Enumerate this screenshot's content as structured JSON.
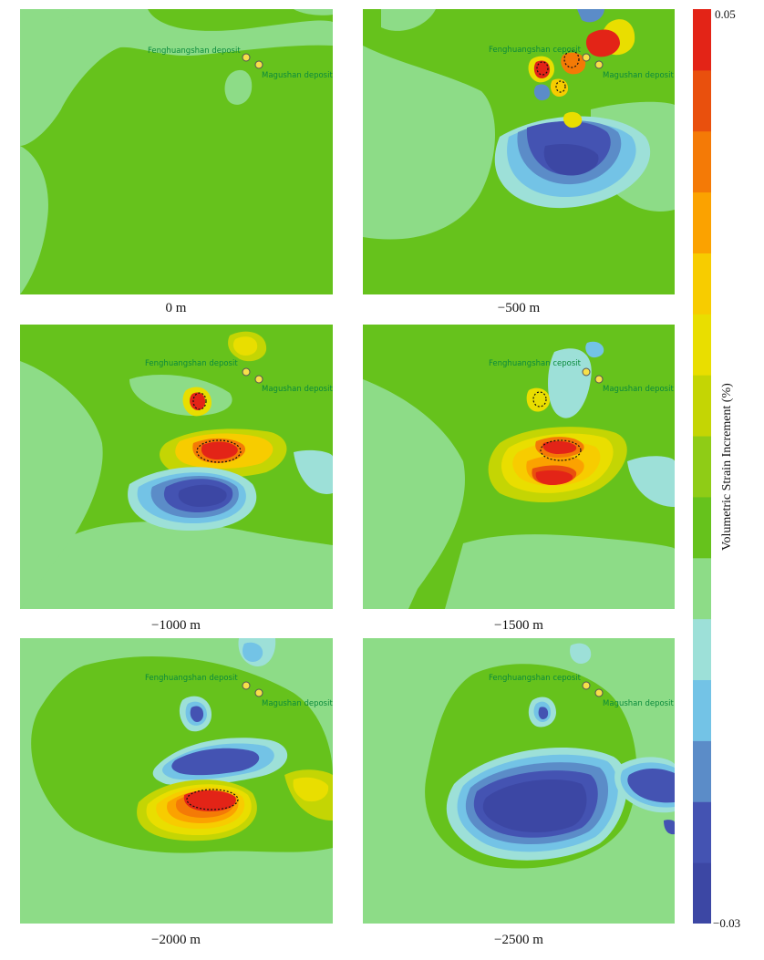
{
  "chart_data": {
    "type": "heatmap",
    "colorbar": {
      "title": "Volumetric Strain Increment (%)",
      "max_label": "0.05",
      "min_label": "−0.03",
      "range": [
        -0.03,
        0.05
      ],
      "colors": [
        "#3c47a4",
        "#4453b2",
        "#5b8cc8",
        "#73c3e6",
        "#9de0d8",
        "#8ddc87",
        "#66c21c",
        "#8fcc16",
        "#c4d504",
        "#e9de00",
        "#f7cc00",
        "#fba200",
        "#f47a06",
        "#e9500d",
        "#e32417"
      ]
    },
    "deposits": [
      "Fenghuangshan deposit",
      "Magushan deposit"
    ],
    "panels": [
      {
        "label": "0 m",
        "deposit_label_1": "Fenghuangshan deposit",
        "deposit_label_2": "Magushan deposit"
      },
      {
        "label": "−500 m",
        "deposit_label_1": "Fenghuangshan ceposit",
        "deposit_label_2": "Magushan deposit"
      },
      {
        "label": "−1000 m",
        "deposit_label_1": "Fenghuangshan deposit",
        "deposit_label_2": "Magushan deposit"
      },
      {
        "label": "−1500 m",
        "deposit_label_1": "Fenghuangshan ceposit",
        "deposit_label_2": "Magushan deposit"
      },
      {
        "label": "−2000 m",
        "deposit_label_1": "Fenghuangshan deposit",
        "deposit_label_2": "Magushan deposit"
      },
      {
        "label": "−2500 m",
        "deposit_label_1": "Fenghuangshan ceposit",
        "deposit_label_2": "Magushan deposit"
      }
    ]
  }
}
